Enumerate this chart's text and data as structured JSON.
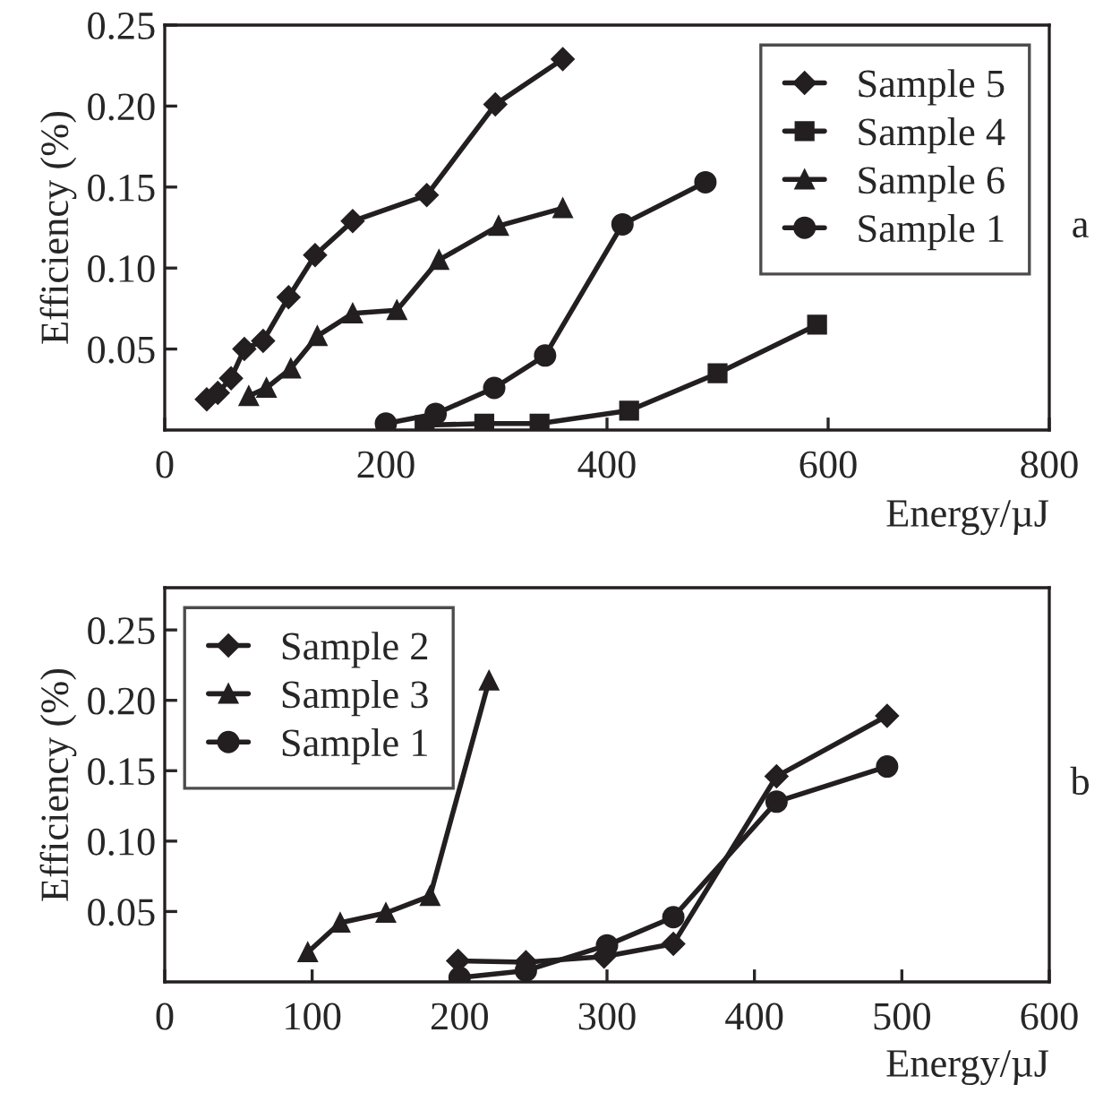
{
  "chart_data": [
    {
      "type": "line",
      "xlabel": "Energy/µJ",
      "ylabel": "Efficiency (%)",
      "annotations": [
        "a"
      ],
      "xlim": [
        0,
        800
      ],
      "xticks": [
        0,
        200,
        400,
        600,
        800
      ],
      "ylim": [
        0,
        0.25
      ],
      "yticks": [
        {
          "value": 0.05,
          "label": "0.05"
        },
        {
          "value": 0.1,
          "label": "0.10"
        },
        {
          "value": 0.15,
          "label": "0.15"
        },
        {
          "value": 0.2,
          "label": "0.20"
        },
        {
          "value": 0.25,
          "label": "0.25"
        }
      ],
      "grid": false,
      "legend": "top right",
      "series": [
        {
          "name": "Sample 5",
          "color": "#231f20",
          "marker": "diamond",
          "x": [
            38,
            48,
            60,
            72,
            89,
            112,
            136,
            170,
            237,
            299,
            360
          ],
          "values": [
            0.019,
            0.023,
            0.032,
            0.05,
            0.055,
            0.082,
            0.108,
            0.129,
            0.145,
            0.201,
            0.229
          ]
        },
        {
          "name": "Sample 4",
          "color": "#231f20",
          "marker": "square",
          "x": [
            235,
            289,
            339,
            420,
            500,
            590
          ],
          "values": [
            0.003,
            0.004,
            0.004,
            0.012,
            0.035,
            0.065
          ]
        },
        {
          "name": "Sample 6",
          "color": "#231f20",
          "marker": "triangle",
          "x": [
            76,
            92,
            114,
            138,
            170,
            210,
            248,
            302,
            360
          ],
          "values": [
            0.021,
            0.026,
            0.038,
            0.058,
            0.072,
            0.074,
            0.105,
            0.126,
            0.137
          ]
        },
        {
          "name": "Sample 1",
          "color": "#231f20",
          "marker": "circle",
          "x": [
            200,
            245,
            298,
            344,
            414,
            489
          ],
          "values": [
            0.004,
            0.01,
            0.026,
            0.046,
            0.127,
            0.153
          ]
        }
      ]
    },
    {
      "type": "line",
      "xlabel": "Energy/µJ",
      "ylabel": "Efficiency (%)",
      "annotations": [
        "b"
      ],
      "xlim": [
        0,
        600
      ],
      "xticks": [
        0,
        100,
        200,
        300,
        400,
        500,
        600
      ],
      "ylim": [
        0,
        0.28
      ],
      "yticks": [
        {
          "value": 0.05,
          "label": "0.05"
        },
        {
          "value": 0.1,
          "label": "0.10"
        },
        {
          "value": 0.15,
          "label": "0.15"
        },
        {
          "value": 0.2,
          "label": "0.20"
        },
        {
          "value": 0.25,
          "label": "0.25"
        }
      ],
      "grid": false,
      "legend": "top left",
      "series": [
        {
          "name": "Sample 2",
          "color": "#231f20",
          "marker": "diamond",
          "x": [
            199,
            245,
            298,
            345,
            415,
            490
          ],
          "values": [
            0.015,
            0.014,
            0.018,
            0.027,
            0.146,
            0.189
          ]
        },
        {
          "name": "Sample 3",
          "color": "#231f20",
          "marker": "triangle",
          "x": [
            97,
            119,
            150,
            180,
            220
          ],
          "values": [
            0.021,
            0.042,
            0.049,
            0.061,
            0.214
          ]
        },
        {
          "name": "Sample 1",
          "color": "#231f20",
          "marker": "circle",
          "x": [
            200,
            245,
            300,
            345,
            415,
            490
          ],
          "values": [
            0.003,
            0.008,
            0.026,
            0.046,
            0.128,
            0.153
          ]
        }
      ]
    }
  ]
}
